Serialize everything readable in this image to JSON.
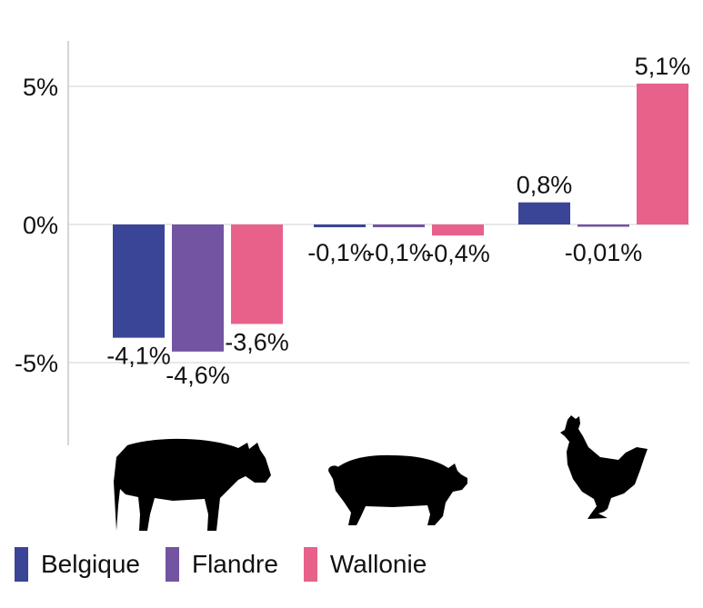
{
  "chart_data": {
    "type": "bar",
    "categories": [
      "cow-icon",
      "pig-icon",
      "chicken-icon"
    ],
    "series": [
      {
        "name": "Belgique",
        "color": "#3a4597",
        "values": [
          -4.1,
          -0.1,
          0.8
        ],
        "labels": [
          "-4,1%",
          "-0,1%",
          "0,8%"
        ]
      },
      {
        "name": "Flandre",
        "color": "#7254a3",
        "values": [
          -4.6,
          -0.1,
          -0.01
        ],
        "labels": [
          "-4,6%",
          "-0,1%",
          "-0,01%"
        ]
      },
      {
        "name": "Wallonie",
        "color": "#e8618a",
        "values": [
          -3.6,
          -0.4,
          5.1
        ],
        "labels": [
          "-3,6%",
          "-0,4%",
          "5,1%"
        ]
      }
    ],
    "yticks": [
      {
        "value": 5,
        "label": "5%"
      },
      {
        "value": 0,
        "label": "0%"
      },
      {
        "value": -5,
        "label": "-5%"
      }
    ],
    "ylim": [
      -8,
      6.6
    ],
    "grid": true,
    "legend_position": "bottom-left",
    "title": "",
    "xlabel": "",
    "ylabel": ""
  }
}
